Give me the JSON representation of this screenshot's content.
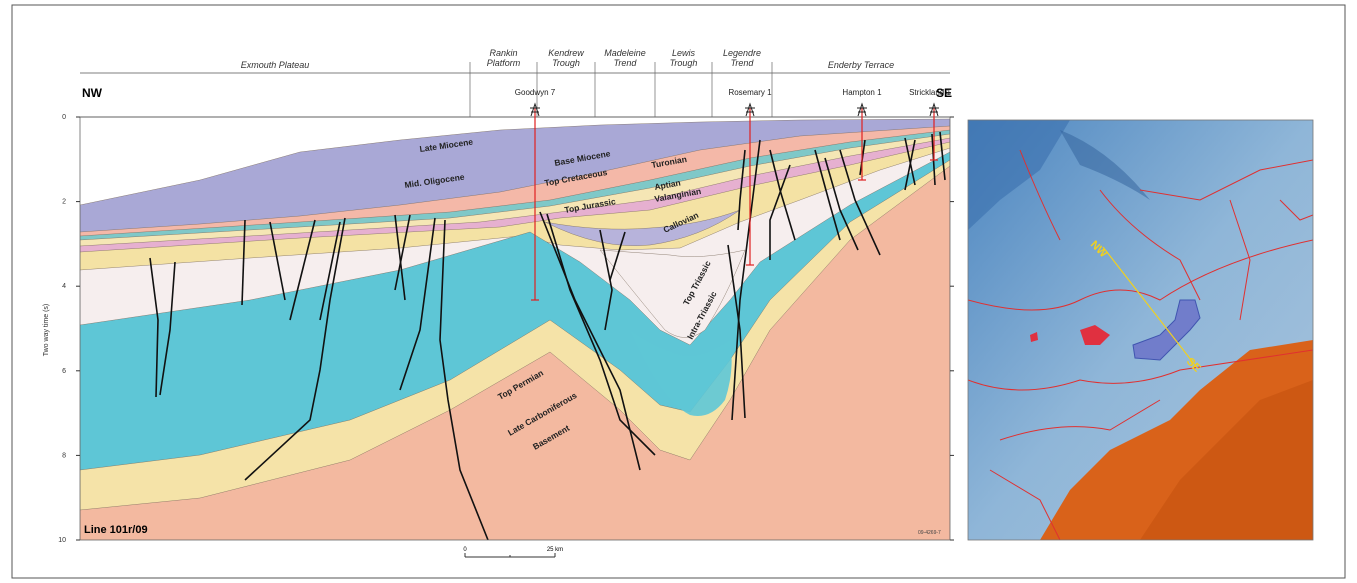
{
  "header": {
    "regions": [
      [
        "Exmouth Plateau"
      ],
      [
        "Rankin",
        "Platform"
      ],
      [
        "Kendrew",
        "Trough"
      ],
      [
        "Madeleine",
        "Trend"
      ],
      [
        "Lewis",
        "Trough"
      ],
      [
        "Legendre",
        "Trend"
      ],
      [
        "Enderby Terrace"
      ]
    ],
    "nw": "NW",
    "se": "SE"
  },
  "wells": [
    "Goodwyn 7",
    "Rosemary 1",
    "Hampton 1",
    "Strickland 1"
  ],
  "axis": {
    "label": "Two way time (s)",
    "ticks": [
      "0",
      "2",
      "4",
      "6",
      "8",
      "10"
    ]
  },
  "layers": [
    "Late Miocene",
    "Mid. Oligocene",
    "Base Miocene",
    "Top Cretaceous",
    "Turonian",
    "Aptian",
    "Valanginian",
    "Top Jurassic",
    "Callovian",
    "Top Triassic",
    "Intra-Triassic",
    "Top Permian",
    "Late Carboniferous",
    "Basement"
  ],
  "line_label": "Line 101r/09",
  "figure_id": "09-4269-7",
  "scale": {
    "start": "0",
    "end": "25 km"
  },
  "map": {
    "nw": "NW",
    "se": "SE"
  }
}
